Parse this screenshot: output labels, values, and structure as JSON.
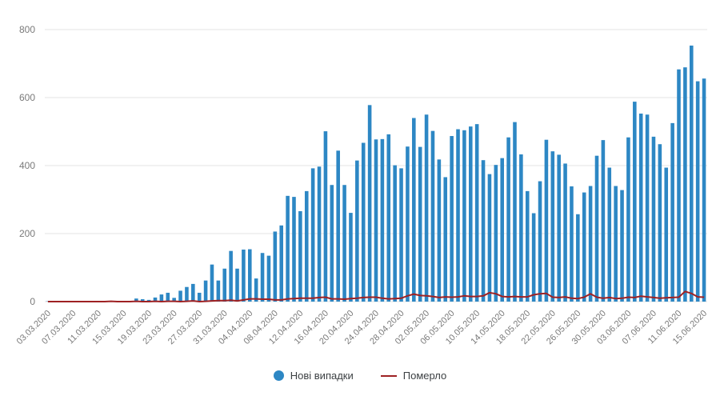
{
  "chart_data": {
    "type": "bar",
    "title": "",
    "xlabel": "",
    "ylabel": "",
    "ylim": [
      0,
      800
    ],
    "ytick_step": 200,
    "yticks": [
      "0",
      "200",
      "400",
      "600",
      "800"
    ],
    "grid": true,
    "legend_position": "bottom",
    "tick_interval": 4,
    "x": [
      "03.03.2020",
      "04.03.2020",
      "05.03.2020",
      "06.03.2020",
      "07.03.2020",
      "08.03.2020",
      "09.03.2020",
      "10.03.2020",
      "11.03.2020",
      "12.03.2020",
      "13.03.2020",
      "14.03.2020",
      "15.03.2020",
      "16.03.2020",
      "17.03.2020",
      "18.03.2020",
      "19.03.2020",
      "20.03.2020",
      "21.03.2020",
      "22.03.2020",
      "23.03.2020",
      "24.03.2020",
      "25.03.2020",
      "26.03.2020",
      "27.03.2020",
      "28.03.2020",
      "29.03.2020",
      "30.03.2020",
      "31.03.2020",
      "01.04.2020",
      "02.04.2020",
      "03.04.2020",
      "04.04.2020",
      "05.04.2020",
      "06.04.2020",
      "07.04.2020",
      "08.04.2020",
      "09.04.2020",
      "10.04.2020",
      "11.04.2020",
      "12.04.2020",
      "13.04.2020",
      "14.04.2020",
      "15.04.2020",
      "16.04.2020",
      "17.04.2020",
      "18.04.2020",
      "19.04.2020",
      "20.04.2020",
      "21.04.2020",
      "22.04.2020",
      "23.04.2020",
      "24.04.2020",
      "25.04.2020",
      "26.04.2020",
      "27.04.2020",
      "28.04.2020",
      "29.04.2020",
      "30.04.2020",
      "01.05.2020",
      "02.05.2020",
      "03.05.2020",
      "04.05.2020",
      "05.05.2020",
      "06.05.2020",
      "07.05.2020",
      "08.05.2020",
      "09.05.2020",
      "10.05.2020",
      "11.05.2020",
      "12.05.2020",
      "13.05.2020",
      "14.05.2020",
      "15.05.2020",
      "16.05.2020",
      "17.05.2020",
      "18.05.2020",
      "19.05.2020",
      "20.05.2020",
      "21.05.2020",
      "22.05.2020",
      "23.05.2020",
      "24.05.2020",
      "25.05.2020",
      "26.05.2020",
      "27.05.2020",
      "28.05.2020",
      "29.05.2020",
      "30.05.2020",
      "31.05.2020",
      "01.06.2020",
      "02.06.2020",
      "03.06.2020",
      "04.06.2020",
      "05.06.2020",
      "06.06.2020",
      "07.06.2020",
      "08.06.2020",
      "09.06.2020",
      "10.06.2020",
      "11.06.2020",
      "12.06.2020",
      "13.06.2020",
      "14.06.2020",
      "15.06.2020"
    ],
    "series": [
      {
        "name": "Нові випадки",
        "type": "bar",
        "color": "#2d87c4",
        "values": [
          1,
          0,
          0,
          0,
          0,
          0,
          0,
          0,
          0,
          1,
          1,
          0,
          0,
          2,
          9,
          7,
          5,
          12,
          21,
          26,
          11,
          32,
          43,
          52,
          26,
          62,
          109,
          62,
          97,
          149,
          97,
          153,
          154,
          68,
          143,
          135,
          206,
          224,
          311,
          308,
          266,
          325,
          392,
          397,
          501,
          343,
          444,
          343,
          261,
          415,
          467,
          578,
          477,
          478,
          492,
          401,
          392,
          456,
          540,
          455,
          550,
          502,
          418,
          366,
          487,
          507,
          504,
          515,
          522,
          416,
          375,
          402,
          422,
          483,
          528,
          433,
          325,
          260,
          354,
          476,
          442,
          432,
          406,
          339,
          257,
          321,
          340,
          429,
          475,
          394,
          340,
          328,
          483,
          588,
          553,
          550,
          485,
          463,
          394,
          525,
          683,
          689,
          753,
          648,
          656
        ]
      },
      {
        "name": "Померло",
        "type": "line",
        "color": "#9e2123",
        "values": [
          0,
          0,
          0,
          0,
          0,
          0,
          0,
          0,
          0,
          0,
          1,
          0,
          0,
          0,
          1,
          0,
          0,
          1,
          0,
          1,
          1,
          0,
          1,
          2,
          0,
          1,
          2,
          3,
          3,
          4,
          2,
          5,
          8,
          8,
          7,
          7,
          5,
          5,
          8,
          9,
          10,
          10,
          10,
          12,
          13,
          8,
          8,
          7,
          9,
          10,
          12,
          13,
          13,
          10,
          8,
          9,
          10,
          17,
          22,
          18,
          17,
          15,
          12,
          14,
          13,
          14,
          17,
          15,
          15,
          17,
          26,
          23,
          15,
          14,
          15,
          14,
          14,
          20,
          23,
          24,
          13,
          12,
          14,
          10,
          9,
          13,
          23,
          13,
          10,
          12,
          9,
          10,
          13,
          12,
          16,
          14,
          12,
          10,
          11,
          12,
          13,
          30,
          24,
          14,
          13
        ]
      }
    ]
  },
  "colors": {
    "background": "#ffffff",
    "grid": "#e3e3e3",
    "axis_text": "#7a7a7a",
    "legend_text": "#3c4043"
  }
}
